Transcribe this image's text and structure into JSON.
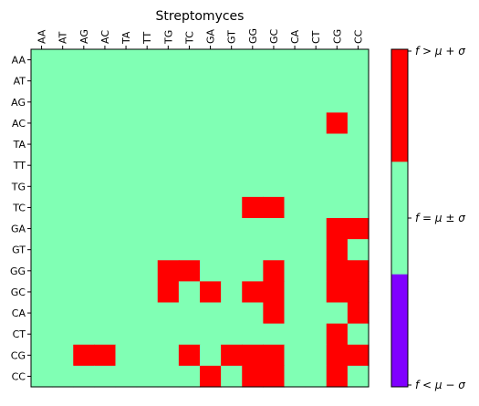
{
  "chart_data": {
    "type": "heatmap",
    "title": "Streptomyces",
    "x_categories": [
      "AA",
      "AT",
      "AG",
      "AC",
      "TA",
      "TT",
      "TG",
      "TC",
      "GA",
      "GT",
      "GG",
      "GC",
      "CA",
      "CT",
      "CG",
      "CC"
    ],
    "y_categories": [
      "AA",
      "AT",
      "AG",
      "AC",
      "TA",
      "TT",
      "TG",
      "TC",
      "GA",
      "GT",
      "GG",
      "GC",
      "CA",
      "CT",
      "CG",
      "CC"
    ],
    "legend": {
      "placement": "right",
      "levels": [
        {
          "value": 1,
          "label": "f > μ + σ",
          "color": "#ff0000"
        },
        {
          "value": 0,
          "label": "f = μ ± σ",
          "color": "#80ffb4"
        },
        {
          "value": -1,
          "label": "f < μ − σ",
          "color": "#8000ff"
        }
      ]
    },
    "values": [
      [
        0,
        0,
        0,
        0,
        0,
        0,
        0,
        0,
        0,
        0,
        0,
        0,
        0,
        0,
        0,
        0
      ],
      [
        0,
        0,
        0,
        0,
        0,
        0,
        0,
        0,
        0,
        0,
        0,
        0,
        0,
        0,
        0,
        0
      ],
      [
        0,
        0,
        0,
        0,
        0,
        0,
        0,
        0,
        0,
        0,
        0,
        0,
        0,
        0,
        0,
        0
      ],
      [
        0,
        0,
        0,
        0,
        0,
        0,
        0,
        0,
        0,
        0,
        0,
        0,
        0,
        0,
        1,
        0
      ],
      [
        0,
        0,
        0,
        0,
        0,
        0,
        0,
        0,
        0,
        0,
        0,
        0,
        0,
        0,
        0,
        0
      ],
      [
        0,
        0,
        0,
        0,
        0,
        0,
        0,
        0,
        0,
        0,
        0,
        0,
        0,
        0,
        0,
        0
      ],
      [
        0,
        0,
        0,
        0,
        0,
        0,
        0,
        0,
        0,
        0,
        0,
        0,
        0,
        0,
        0,
        0
      ],
      [
        0,
        0,
        0,
        0,
        0,
        0,
        0,
        0,
        0,
        0,
        1,
        1,
        0,
        0,
        0,
        0
      ],
      [
        0,
        0,
        0,
        0,
        0,
        0,
        0,
        0,
        0,
        0,
        0,
        0,
        0,
        0,
        1,
        1
      ],
      [
        0,
        0,
        0,
        0,
        0,
        0,
        0,
        0,
        0,
        0,
        0,
        0,
        0,
        0,
        1,
        0
      ],
      [
        0,
        0,
        0,
        0,
        0,
        0,
        1,
        1,
        0,
        0,
        0,
        1,
        0,
        0,
        1,
        1
      ],
      [
        0,
        0,
        0,
        0,
        0,
        0,
        1,
        0,
        1,
        0,
        1,
        1,
        0,
        0,
        1,
        1
      ],
      [
        0,
        0,
        0,
        0,
        0,
        0,
        0,
        0,
        0,
        0,
        0,
        1,
        0,
        0,
        0,
        1
      ],
      [
        0,
        0,
        0,
        0,
        0,
        0,
        0,
        0,
        0,
        0,
        0,
        0,
        0,
        0,
        1,
        0
      ],
      [
        0,
        0,
        1,
        1,
        0,
        0,
        0,
        1,
        0,
        1,
        1,
        1,
        0,
        0,
        1,
        1
      ],
      [
        0,
        0,
        0,
        0,
        0,
        0,
        0,
        0,
        1,
        0,
        1,
        1,
        0,
        0,
        1,
        0
      ]
    ]
  }
}
